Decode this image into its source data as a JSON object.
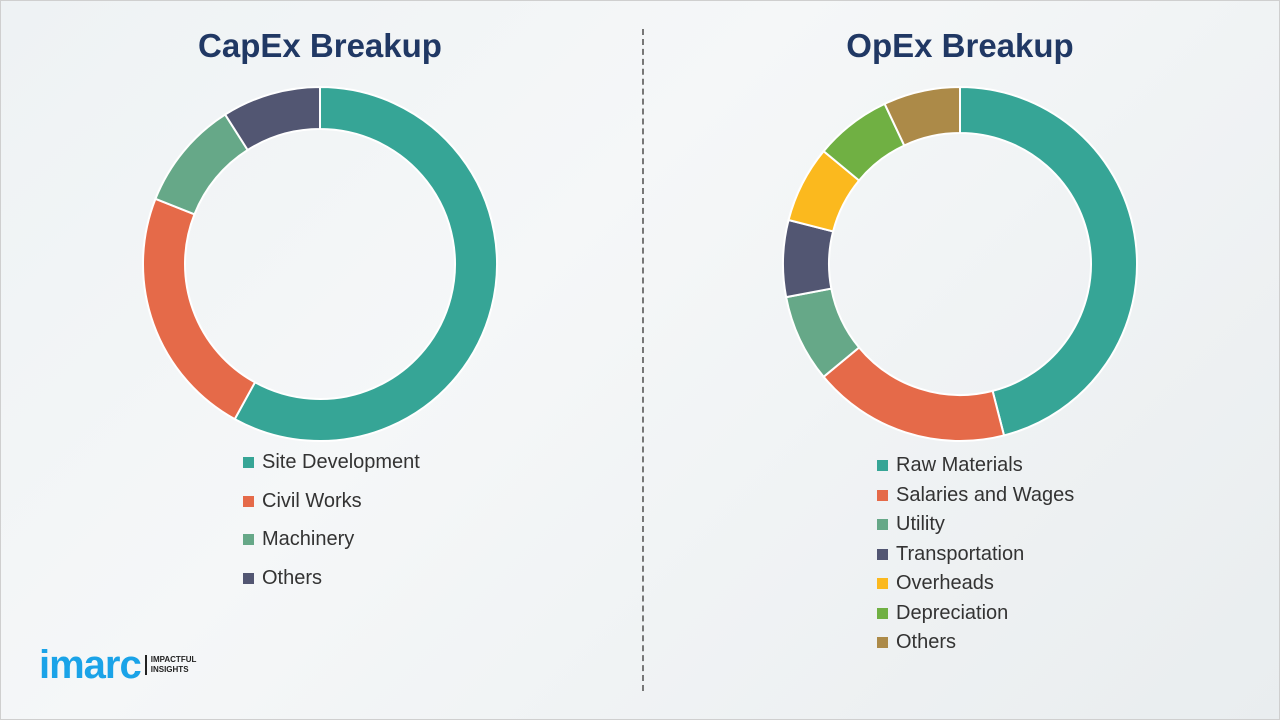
{
  "chart_data": [
    {
      "type": "pie",
      "title": "CapEx Breakup",
      "donut": true,
      "categories": [
        "Site Development",
        "Civil Works",
        "Machinery",
        "Others"
      ],
      "values": [
        58,
        23,
        10,
        9
      ],
      "colors": [
        "#36a596",
        "#e56a49",
        "#66a888",
        "#525672"
      ],
      "legend": "bottom"
    },
    {
      "type": "pie",
      "title": "OpEx Breakup",
      "donut": true,
      "categories": [
        "Raw Materials",
        "Salaries and Wages",
        "Utility",
        "Transportation",
        "Overheads",
        "Depreciation",
        "Others"
      ],
      "values": [
        46,
        18,
        8,
        7,
        7,
        7,
        7
      ],
      "colors": [
        "#36a596",
        "#e56a49",
        "#66a888",
        "#525672",
        "#fbb91e",
        "#70b043",
        "#ac8a48"
      ],
      "legend": "bottom"
    }
  ],
  "logo": {
    "word": "imarc",
    "tagline_1": "IMPACTFUL",
    "tagline_2": "INSIGHTS"
  }
}
